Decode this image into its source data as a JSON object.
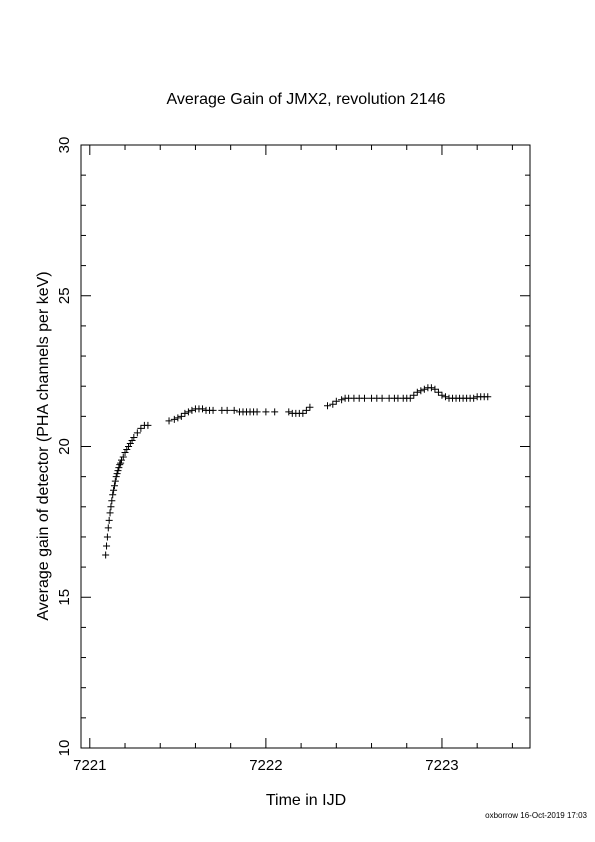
{
  "chart_data": {
    "type": "scatter",
    "title": "Average Gain of JMX2, revolution 2146",
    "xlabel": "Time in IJD",
    "ylabel": "Average gain of detector (PHA channels per keV)",
    "xlim": [
      7220.95,
      7223.5
    ],
    "ylim": [
      10,
      30
    ],
    "xticks": [
      7221,
      7222,
      7223
    ],
    "yticks": [
      10,
      15,
      20,
      25,
      30
    ],
    "grid": false,
    "legend": "none",
    "marker": "plus",
    "color": "#000000",
    "series": [
      {
        "x": [
          7221.09,
          7221.095,
          7221.1,
          7221.105,
          7221.11,
          7221.115,
          7221.12,
          7221.125,
          7221.13,
          7221.135,
          7221.14,
          7221.145,
          7221.15,
          7221.155,
          7221.16,
          7221.165,
          7221.17,
          7221.175,
          7221.18,
          7221.19,
          7221.2,
          7221.21,
          7221.22,
          7221.23,
          7221.24,
          7221.25,
          7221.27,
          7221.29,
          7221.31,
          7221.33,
          7221.45,
          7221.48,
          7221.5,
          7221.52,
          7221.54,
          7221.56,
          7221.58,
          7221.6,
          7221.62,
          7221.64,
          7221.66,
          7221.68,
          7221.7,
          7221.75,
          7221.78,
          7221.82,
          7221.85,
          7221.87,
          7221.89,
          7221.91,
          7221.93,
          7221.95,
          7222.0,
          7222.05,
          7222.13,
          7222.15,
          7222.17,
          7222.19,
          7222.21,
          7222.23,
          7222.25,
          7222.35,
          7222.38,
          7222.4,
          7222.43,
          7222.45,
          7222.47,
          7222.5,
          7222.53,
          7222.56,
          7222.6,
          7222.63,
          7222.66,
          7222.7,
          7222.73,
          7222.75,
          7222.78,
          7222.8,
          7222.82,
          7222.84,
          7222.86,
          7222.88,
          7222.9,
          7222.92,
          7222.94,
          7222.96,
          7222.98,
          7223.0,
          7223.02,
          7223.04,
          7223.06,
          7223.08,
          7223.1,
          7223.12,
          7223.14,
          7223.16,
          7223.18,
          7223.2,
          7223.22,
          7223.24,
          7223.26
        ],
        "y": [
          16.4,
          16.7,
          17.0,
          17.3,
          17.55,
          17.8,
          18.0,
          18.2,
          18.4,
          18.55,
          18.7,
          18.85,
          19.0,
          19.1,
          19.2,
          19.3,
          19.4,
          19.45,
          19.55,
          19.65,
          19.8,
          19.9,
          20.0,
          20.1,
          20.2,
          20.3,
          20.45,
          20.6,
          20.7,
          20.7,
          20.85,
          20.9,
          20.95,
          21.0,
          21.1,
          21.15,
          21.2,
          21.25,
          21.25,
          21.25,
          21.2,
          21.2,
          21.2,
          21.2,
          21.2,
          21.2,
          21.15,
          21.15,
          21.15,
          21.15,
          21.15,
          21.15,
          21.15,
          21.15,
          21.15,
          21.1,
          21.1,
          21.1,
          21.1,
          21.2,
          21.3,
          21.35,
          21.4,
          21.5,
          21.55,
          21.6,
          21.6,
          21.6,
          21.6,
          21.6,
          21.6,
          21.6,
          21.6,
          21.6,
          21.6,
          21.6,
          21.6,
          21.6,
          21.6,
          21.7,
          21.8,
          21.85,
          21.9,
          21.95,
          21.95,
          21.9,
          21.8,
          21.7,
          21.65,
          21.6,
          21.6,
          21.6,
          21.6,
          21.6,
          21.6,
          21.6,
          21.6,
          21.65,
          21.65,
          21.65,
          21.65
        ]
      }
    ]
  },
  "footer": {
    "stamp": "oxborrow 16-Oct-2019 17:03"
  }
}
